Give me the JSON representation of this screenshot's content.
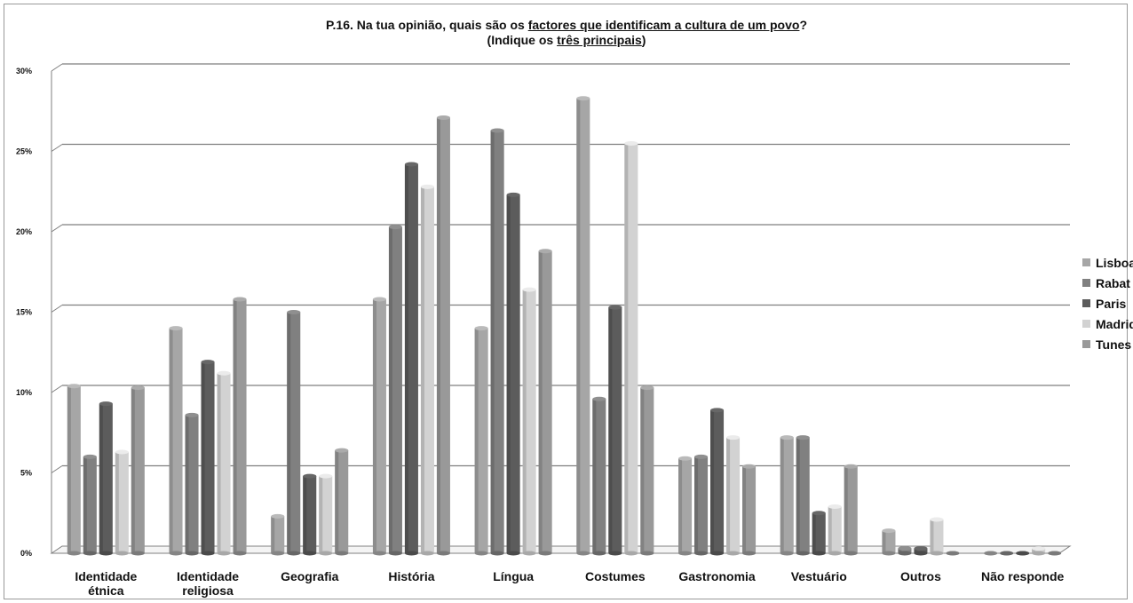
{
  "title": {
    "line1_prefix": "P.16. Na tua opinião, quais são os ",
    "line1_underlined": "factores que identificam a cultura de um povo",
    "line1_suffix": "?",
    "line2_prefix": "(Indique os ",
    "line2_underlined": "três principais",
    "line2_suffix": ")"
  },
  "colors": {
    "Lisboa": "#a6a6a6",
    "Rabat": "#808080",
    "Paris": "#5c5c5c",
    "Madrid": "#d2d2d2",
    "Tunes": "#999999"
  },
  "chart_data": {
    "type": "bar",
    "title": "P.16. Na tua opinião, quais são os factores que identificam a cultura de um povo? (Indique os três principais)",
    "categories": [
      [
        "Identidade",
        "étnica"
      ],
      [
        "Identidade",
        "religiosa"
      ],
      [
        "Geografia"
      ],
      [
        "História"
      ],
      [
        "Língua"
      ],
      [
        "Costumes"
      ],
      [
        "Gastronomia"
      ],
      [
        "Vestuário"
      ],
      [
        "Outros"
      ],
      [
        "Não responde"
      ]
    ],
    "series": [
      {
        "name": "Lisboa",
        "values": [
          10.4,
          14.0,
          2.3,
          15.8,
          14.0,
          28.3,
          5.9,
          7.2,
          1.4,
          0.0
        ]
      },
      {
        "name": "Rabat",
        "values": [
          6.0,
          8.6,
          15.0,
          20.3,
          26.3,
          9.6,
          6.0,
          7.2,
          0.3,
          0.0
        ]
      },
      {
        "name": "Paris",
        "values": [
          9.3,
          11.9,
          4.8,
          24.2,
          22.3,
          15.3,
          8.9,
          2.5,
          0.3,
          0.0
        ]
      },
      {
        "name": "Madrid",
        "values": [
          6.3,
          11.2,
          4.8,
          22.8,
          16.4,
          25.5,
          7.2,
          2.9,
          2.1,
          0.3
        ]
      },
      {
        "name": "Tunes",
        "values": [
          10.3,
          15.8,
          6.4,
          27.1,
          18.8,
          10.3,
          5.4,
          5.4,
          0.0,
          0.0
        ]
      }
    ],
    "yticks": [
      "0%",
      "5%",
      "10%",
      "15%",
      "20%",
      "25%",
      "30%"
    ],
    "ylim": [
      0,
      30
    ],
    "grid": true,
    "legend": "right"
  }
}
